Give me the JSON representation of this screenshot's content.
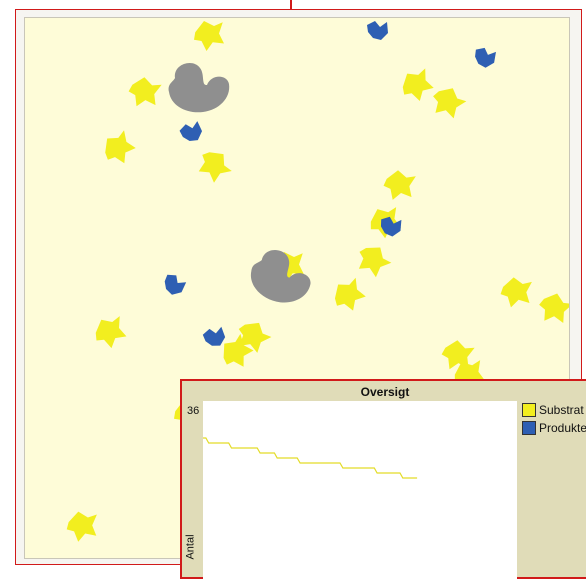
{
  "colors": {
    "substrate": "#f2ee1f",
    "product": "#2e5fb3",
    "enzyme": "#8f8f8f",
    "world_bg": "#fefcd8",
    "frame": "#d11a1a",
    "chart_line": "#e3dc27"
  },
  "overview": {
    "title": "Oversigt",
    "legend": [
      {
        "label": "Substrat",
        "color": "#f2ee1f"
      },
      {
        "label": "Produkter",
        "color": "#2e5fb3"
      }
    ]
  },
  "chart_data": {
    "type": "line",
    "title": "Oversigt",
    "xlabel": "",
    "ylabel": "Antal",
    "ylim": [
      0,
      36
    ],
    "series": [
      {
        "name": "Substrat",
        "color": "#e3dc27",
        "points": [
          [
            0,
            31
          ],
          [
            1,
            31
          ],
          [
            2,
            30
          ],
          [
            9,
            30
          ],
          [
            10,
            29
          ],
          [
            19,
            29
          ],
          [
            20,
            28
          ],
          [
            25,
            28
          ],
          [
            26,
            27
          ],
          [
            33,
            27
          ],
          [
            34,
            26
          ],
          [
            48,
            26
          ],
          [
            49,
            25
          ],
          [
            60,
            25
          ],
          [
            61,
            24
          ],
          [
            69,
            24
          ],
          [
            70,
            23
          ],
          [
            75,
            23
          ]
        ]
      }
    ]
  }
}
